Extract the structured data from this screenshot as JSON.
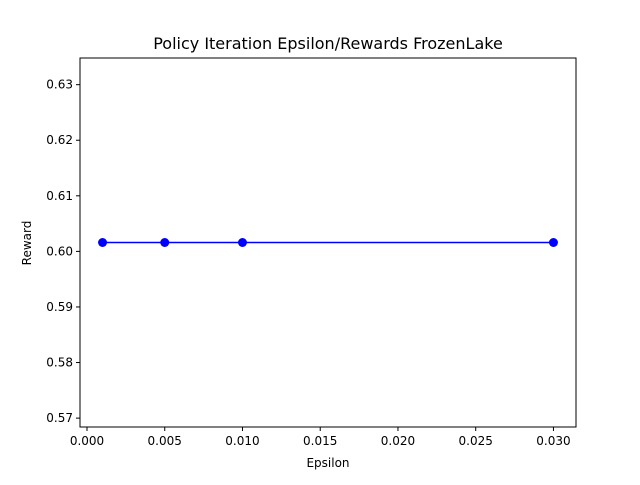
{
  "chart_data": {
    "type": "line",
    "title": "Policy Iteration Epsilon/Rewards FrozenLake",
    "xlabel": "Epsilon",
    "ylabel": "Reward",
    "xlim": [
      -0.00045,
      0.03145
    ],
    "ylim": [
      0.5684,
      0.6348
    ],
    "x_ticks": [
      0.0,
      0.005,
      0.01,
      0.015,
      0.02,
      0.025,
      0.03
    ],
    "x_tick_labels": [
      "0.000",
      "0.005",
      "0.010",
      "0.015",
      "0.020",
      "0.025",
      "0.030"
    ],
    "y_ticks": [
      0.57,
      0.58,
      0.59,
      0.6,
      0.61,
      0.62,
      0.63
    ],
    "y_tick_labels": [
      "0.57",
      "0.58",
      "0.59",
      "0.60",
      "0.61",
      "0.62",
      "0.63"
    ],
    "grid": false,
    "series": [
      {
        "color": "#0000ff",
        "marker": "circle",
        "x": [
          0.001,
          0.005,
          0.01,
          0.03
        ],
        "y": [
          0.6016,
          0.6016,
          0.6016,
          0.6016
        ]
      }
    ]
  }
}
